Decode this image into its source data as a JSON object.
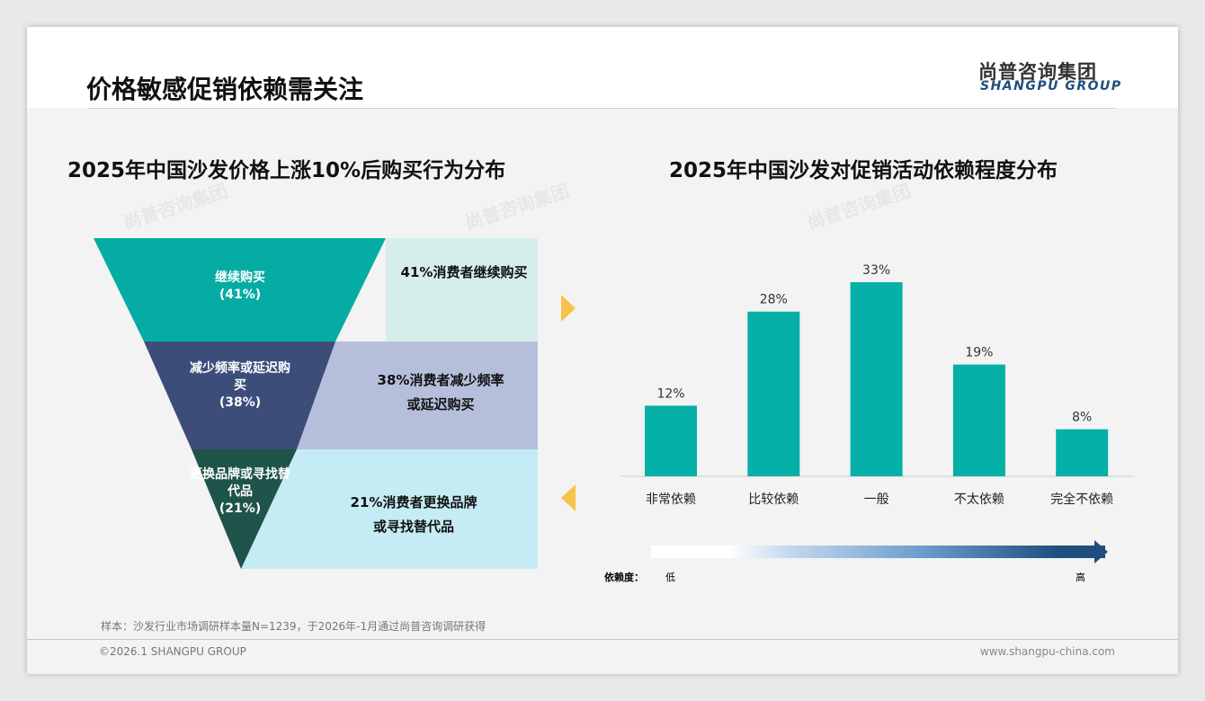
{
  "header": {
    "title": "价格敏感促销依赖需关注",
    "logo_cn": "尚普咨询集团",
    "logo_en": "SHANGPU GROUP"
  },
  "left": {
    "subtitle": "2025年中国沙发价格上涨10%后购买行为分布",
    "stages": [
      {
        "label": "继续购买",
        "pct": "(41%)",
        "desc1": "41%消费者继续购买",
        "desc2": "",
        "value": 41,
        "color": "#05aca4",
        "bg": "#d6eeea"
      },
      {
        "label": "减少频率或延迟购买",
        "pct": "(38%)",
        "desc1": "38%消费者减少频率",
        "desc2": "或延迟购买",
        "value": 38,
        "color": "#3d4d7a",
        "bg": "#b5bedb"
      },
      {
        "label": "更换品牌或寻找替代品",
        "pct": "(21%)",
        "desc1": "21%消费者更换品牌",
        "desc2": "或寻找替代品",
        "value": 21,
        "color": "#1f544a",
        "bg": "#c5ecf4"
      }
    ]
  },
  "chart_data": {
    "type": "bar",
    "title": "2025年中国沙发对促销活动依赖程度分布",
    "categories": [
      "非常依赖",
      "比较依赖",
      "一般",
      "不太依赖",
      "完全不依赖"
    ],
    "values": [
      12,
      28,
      33,
      19,
      8
    ],
    "labels": [
      "12%",
      "28%",
      "33%",
      "19%",
      "8%"
    ],
    "unit": "%",
    "color": "#05b0a8",
    "ylim": [
      0,
      35
    ]
  },
  "scale": {
    "label": "依赖度：",
    "low": "低",
    "high": "高"
  },
  "footer": {
    "note": "样本：沙发行业市场调研样本量N=1239，于2026年-1月通过尚普咨询调研获得",
    "copyright": "©2026.1 SHANGPU GROUP",
    "url": "www.shangpu-china.com"
  },
  "colors": {
    "arrow": "#f7c34a"
  }
}
